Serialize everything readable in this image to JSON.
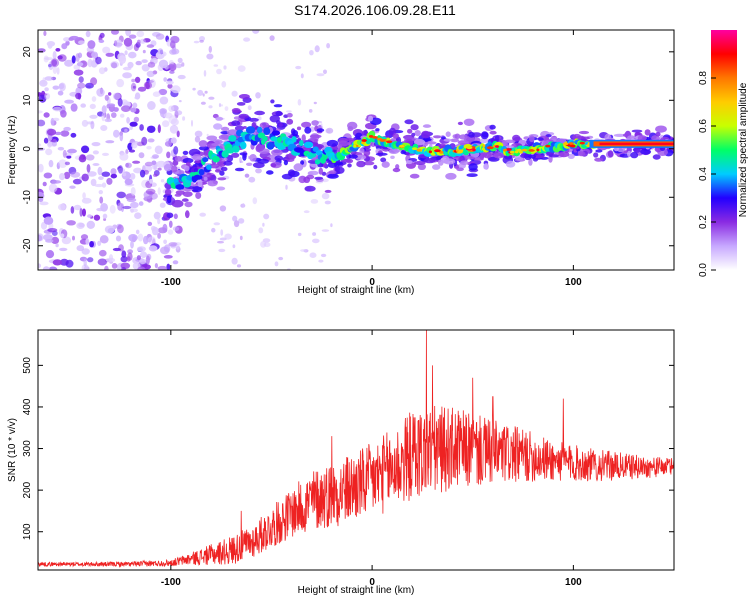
{
  "title": "S174.2026.106.09.28.E11",
  "chart_data": [
    {
      "type": "heatmap",
      "xlabel": "Height of straight line (km)",
      "ylabel": "Frequency (Hz)",
      "xlim": [
        -166,
        150
      ],
      "ylim": [
        -25,
        24.5
      ],
      "xticks": [
        "-100",
        "0",
        "100"
      ],
      "xtick_values": [
        -100,
        0,
        100
      ],
      "yticks": [
        "20",
        "10",
        "0",
        "-10",
        "-20"
      ],
      "ytick_values": [
        20,
        10,
        0,
        -10,
        -20
      ],
      "ridge": {
        "x": [
          -100,
          -90,
          -80,
          -70,
          -60,
          -50,
          -40,
          -30,
          -20,
          -10,
          0,
          10,
          20,
          30,
          40,
          50,
          60,
          70,
          80,
          90,
          100,
          110,
          120,
          130,
          140,
          148
        ],
        "freq": [
          -7,
          -6,
          -2,
          1,
          3,
          2,
          1,
          -1,
          -2,
          0,
          2.5,
          1,
          0,
          -0.5,
          -0.5,
          0,
          0.5,
          -0.5,
          0,
          0.5,
          0.8,
          1,
          1,
          1,
          1,
          1
        ]
      },
      "colorbar": {
        "label": "Normalized spectral amplitude",
        "range": [
          0,
          1
        ],
        "ticks": [
          "0.0",
          "0.2",
          "0.4",
          "0.6",
          "0.8"
        ],
        "tick_values": [
          0,
          0.2,
          0.4,
          0.6,
          0.8
        ],
        "colors": [
          "#ffffff",
          "#c7a8ff",
          "#8a2be2",
          "#2200ff",
          "#00ccff",
          "#00ff66",
          "#c8ff00",
          "#ffcc00",
          "#ff7700",
          "#ff0000",
          "#ff00a0"
        ]
      }
    },
    {
      "type": "line",
      "xlabel": "Height of straight line (km)",
      "ylabel": "SNR (10 * v/v)",
      "xlim": [
        -166,
        150
      ],
      "ylim": [
        8,
        585
      ],
      "xticks": [
        "-100",
        "0",
        "100"
      ],
      "xtick_values": [
        -100,
        0,
        100
      ],
      "yticks": [
        "500",
        "400",
        "300",
        "200",
        "100"
      ],
      "ytick_values": [
        500,
        400,
        300,
        200,
        100
      ],
      "color": "#ee2222",
      "series": [
        {
          "name": "SNR",
          "x": [
            -166,
            -140,
            -120,
            -100,
            -90,
            -80,
            -70,
            -60,
            -50,
            -40,
            -30,
            -20,
            -10,
            0,
            10,
            20,
            30,
            40,
            50,
            60,
            70,
            80,
            90,
            100,
            110,
            120,
            130,
            140,
            150
          ],
          "base": [
            22,
            22,
            22,
            25,
            35,
            45,
            55,
            75,
            110,
            145,
            175,
            190,
            205,
            225,
            250,
            285,
            295,
            300,
            295,
            290,
            285,
            280,
            270,
            265,
            260,
            258,
            256,
            255,
            258
          ],
          "amplitude": [
            5,
            5,
            6,
            8,
            15,
            25,
            35,
            40,
            50,
            60,
            75,
            80,
            85,
            90,
            100,
            110,
            110,
            100,
            90,
            80,
            70,
            60,
            50,
            45,
            40,
            35,
            30,
            25,
            20
          ],
          "peaks": [
            {
              "x": -65,
              "y": 150
            },
            {
              "x": -20,
              "y": 330
            },
            {
              "x": 27,
              "y": 585
            },
            {
              "x": 30,
              "y": 500
            },
            {
              "x": 50,
              "y": 470
            },
            {
              "x": 60,
              "y": 425
            },
            {
              "x": 95,
              "y": 420
            }
          ]
        }
      ]
    }
  ]
}
